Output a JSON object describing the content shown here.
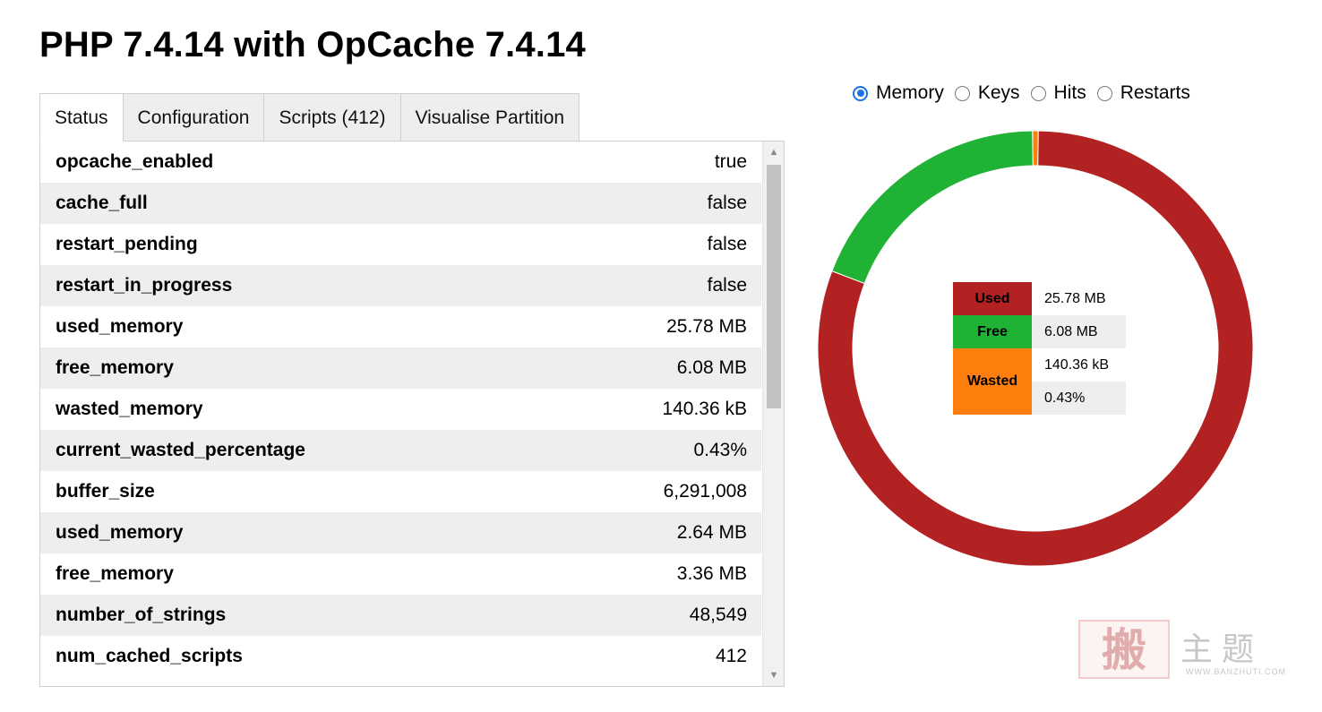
{
  "title": "PHP 7.4.14 with OpCache 7.4.14",
  "tabs": [
    {
      "label": "Status",
      "active": true
    },
    {
      "label": "Configuration",
      "active": false
    },
    {
      "label": "Scripts (412)",
      "active": false
    },
    {
      "label": "Visualise Partition",
      "active": false
    }
  ],
  "status_rows": [
    {
      "key": "opcache_enabled",
      "value": "true"
    },
    {
      "key": "cache_full",
      "value": "false"
    },
    {
      "key": "restart_pending",
      "value": "false"
    },
    {
      "key": "restart_in_progress",
      "value": "false"
    },
    {
      "key": "used_memory",
      "value": "25.78 MB"
    },
    {
      "key": "free_memory",
      "value": "6.08 MB"
    },
    {
      "key": "wasted_memory",
      "value": "140.36 kB"
    },
    {
      "key": "current_wasted_percentage",
      "value": "0.43%"
    },
    {
      "key": "buffer_size",
      "value": "6,291,008"
    },
    {
      "key": "used_memory",
      "value": "2.64 MB"
    },
    {
      "key": "free_memory",
      "value": "3.36 MB"
    },
    {
      "key": "number_of_strings",
      "value": "48,549"
    },
    {
      "key": "num_cached_scripts",
      "value": "412"
    }
  ],
  "chart_selector": {
    "options": [
      {
        "label": "Memory",
        "checked": true
      },
      {
        "label": "Keys",
        "checked": false
      },
      {
        "label": "Hits",
        "checked": false
      },
      {
        "label": "Restarts",
        "checked": false
      }
    ]
  },
  "chart_data": {
    "type": "pie",
    "series": [
      {
        "name": "Used",
        "value_mb": 25.78,
        "color": "#b22222"
      },
      {
        "name": "Free",
        "value_mb": 6.08,
        "color": "#1fb234"
      },
      {
        "name": "Wasted",
        "value_mb": 0.137,
        "color": "#ff7f0e"
      }
    ],
    "legend": {
      "used_label": "Used",
      "used_value": "25.78 MB",
      "free_label": "Free",
      "free_value": "6.08 MB",
      "wasted_label": "Wasted",
      "wasted_value": "140.36 kB",
      "wasted_pct": "0.43%"
    },
    "legend_placement": "center"
  },
  "watermark": {
    "seal": "搬",
    "text": "主题",
    "url": "WWW.BANZHUTI.COM"
  },
  "colors": {
    "used": "#b22222",
    "free": "#1fb234",
    "wasted": "#ff7f0e",
    "row_alt": "#eeeeee",
    "accent": "#1a73e8"
  }
}
